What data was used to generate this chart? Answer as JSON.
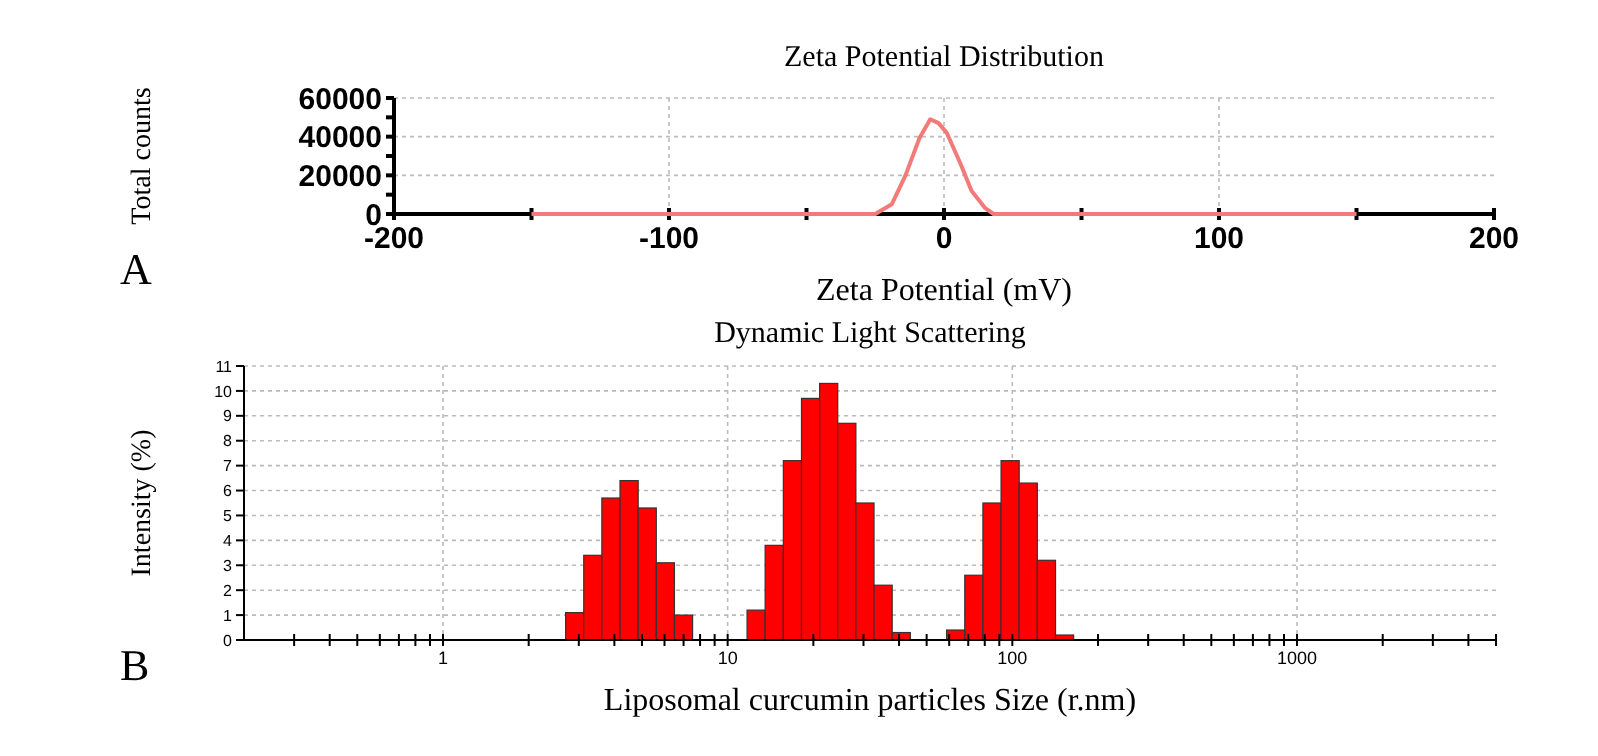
{
  "chart_data": [
    {
      "type": "line",
      "title": "Zeta Potential Distribution",
      "xlabel": "Zeta Potential (mV)",
      "ylabel": "Total counts",
      "annotations": [
        "A"
      ],
      "color": "#f47a7a",
      "grid": true,
      "x": [
        -150,
        -25,
        -19,
        -14,
        -9,
        -5,
        -2,
        1,
        6,
        10,
        15,
        18,
        150
      ],
      "values": [
        0,
        0,
        5000,
        20000,
        39000,
        49000,
        47000,
        42000,
        26000,
        12000,
        3000,
        0,
        0
      ],
      "xlim": [
        -200,
        200
      ],
      "xticks": [
        -200,
        {
          "value": -150,
          "label": null
        },
        -100,
        {
          "value": -50,
          "label": null
        },
        0,
        {
          "value": 50,
          "label": null
        },
        100,
        {
          "value": 150,
          "label": null
        },
        200
      ],
      "ylim": [
        0,
        60000
      ],
      "yticks": [
        0,
        {
          "value": 10000,
          "label": null
        },
        20000,
        {
          "value": 30000,
          "label": null
        },
        40000,
        {
          "value": 50000,
          "label": null
        },
        60000
      ]
    },
    {
      "type": "histogram",
      "title": "Dynamic Light Scattering",
      "xlabel": "Liposomal curcumin particles Size (r.nm)",
      "ylabel": "Intensity (%)",
      "annotations": [
        "B"
      ],
      "color": "#ff0000",
      "grid": true,
      "log": "x",
      "bins": [
        2.696,
        3.122,
        3.615,
        4.187,
        4.849,
        5.615,
        6.503,
        7.531,
        8.721,
        10.1,
        11.7,
        13.54,
        15.69,
        18.17,
        21.04,
        24.36,
        28.21,
        32.67,
        37.84,
        43.82,
        50.75,
        58.77,
        68.06,
        78.82,
        91.28,
        105.7,
        122.4,
        141.8,
        164.2
      ],
      "values": [
        1.1,
        3.4,
        5.7,
        6.4,
        5.3,
        3.1,
        1.0,
        0,
        0,
        0,
        1.2,
        3.8,
        7.2,
        9.7,
        10.3,
        8.7,
        5.5,
        2.2,
        0.3,
        0,
        0,
        0.4,
        2.6,
        5.5,
        7.2,
        6.3,
        3.2,
        0.2
      ],
      "xlim": [
        0.2,
        5000
      ],
      "xticks": [
        {
          "value": 0.3,
          "label": null
        },
        {
          "value": 0.4,
          "label": null
        },
        {
          "value": 0.5,
          "label": null
        },
        {
          "value": 0.6,
          "label": null
        },
        {
          "value": 0.7,
          "label": null
        },
        {
          "value": 0.8,
          "label": null
        },
        {
          "value": 0.9,
          "label": null
        },
        1,
        {
          "value": 2,
          "label": null
        },
        {
          "value": 3,
          "label": null
        },
        {
          "value": 4,
          "label": null
        },
        {
          "value": 5,
          "label": null
        },
        {
          "value": 6,
          "label": null
        },
        {
          "value": 7,
          "label": null
        },
        {
          "value": 8,
          "label": null
        },
        {
          "value": 9,
          "label": null
        },
        10,
        {
          "value": 20,
          "label": null
        },
        {
          "value": 30,
          "label": null
        },
        {
          "value": 40,
          "label": null
        },
        {
          "value": 50,
          "label": null
        },
        {
          "value": 60,
          "label": null
        },
        {
          "value": 70,
          "label": null
        },
        {
          "value": 80,
          "label": null
        },
        {
          "value": 90,
          "label": null
        },
        100,
        {
          "value": 200,
          "label": null
        },
        {
          "value": 300,
          "label": null
        },
        {
          "value": 400,
          "label": null
        },
        {
          "value": 500,
          "label": null
        },
        {
          "value": 600,
          "label": null
        },
        {
          "value": 700,
          "label": null
        },
        {
          "value": 800,
          "label": null
        },
        {
          "value": 900,
          "label": null
        },
        1000,
        {
          "value": 2000,
          "label": null
        },
        {
          "value": 3000,
          "label": null
        },
        {
          "value": 4000,
          "label": null
        },
        {
          "value": 5000,
          "label": null
        }
      ],
      "ylim": [
        0,
        11
      ],
      "yticks": [
        0,
        1,
        2,
        3,
        4,
        5,
        6,
        7,
        8,
        9,
        10,
        11
      ]
    }
  ]
}
